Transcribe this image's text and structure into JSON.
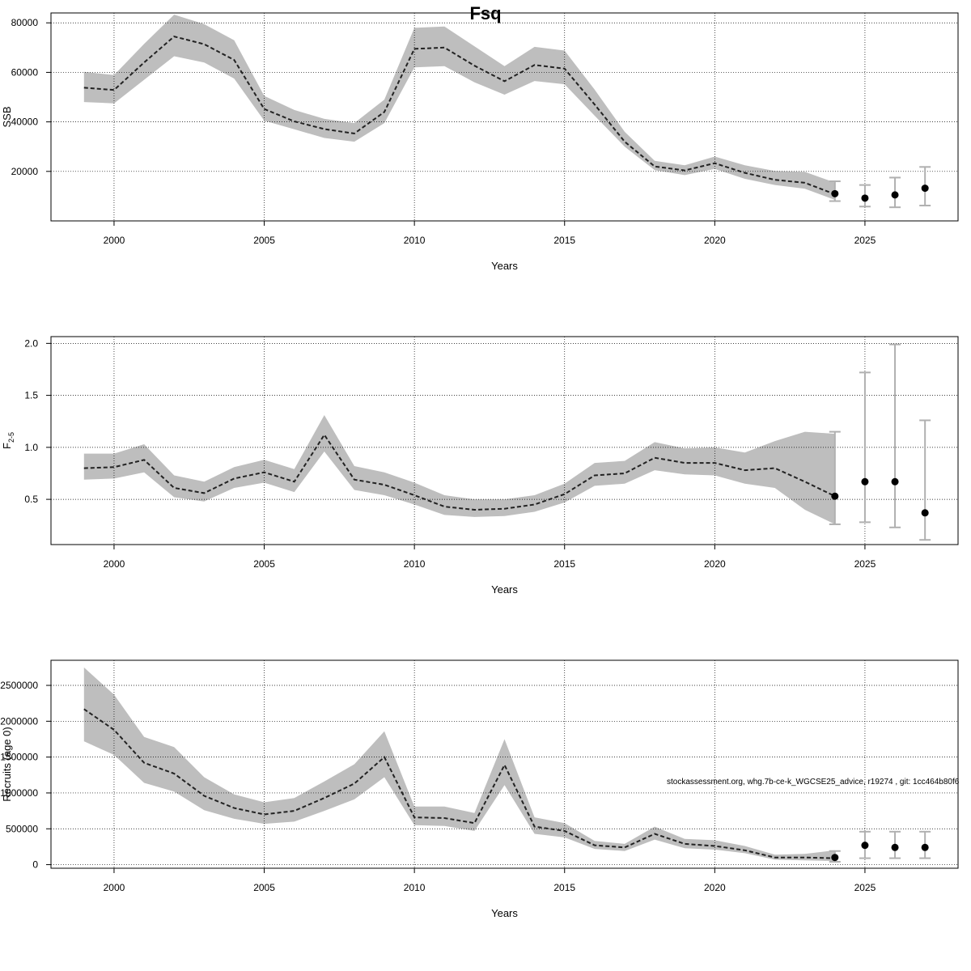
{
  "title": "Fsq",
  "footnote": "stockassessment.org, whg.7b-ce-k_WGCSE25_advice, r19274 , git: 1cc464b80f6",
  "colors": {
    "band": "#bebebe",
    "line": "#222222",
    "errorbar": "#b0b0b0",
    "grid": "#000000"
  },
  "chart_data": [
    {
      "type": "line",
      "title": "",
      "xlabel": "Years",
      "ylabel": "SSB",
      "xlim": [
        1997.9,
        2028.1
      ],
      "ylim": [
        0,
        84000
      ],
      "xticks": [
        2000,
        2005,
        2010,
        2015,
        2020,
        2025
      ],
      "yticks": [
        20000,
        40000,
        60000,
        80000
      ],
      "grid": true,
      "series": [
        {
          "x": [
            1999,
            2000,
            2001,
            2002,
            2003,
            2004,
            2005,
            2006,
            2007,
            2008,
            2009,
            2010,
            2011,
            2012,
            2013,
            2014,
            2015,
            2016,
            2017,
            2018,
            2019,
            2020,
            2021,
            2022,
            2023,
            2024
          ],
          "values": [
            53800,
            52900,
            64000,
            74500,
            71400,
            65000,
            45200,
            40200,
            37100,
            35300,
            44000,
            69500,
            70000,
            62700,
            56400,
            63000,
            61500,
            47000,
            32000,
            22000,
            20400,
            23300,
            19400,
            16600,
            15400,
            10800
          ],
          "lower": [
            48000,
            47500,
            57000,
            66500,
            64000,
            57500,
            40500,
            37000,
            33500,
            32000,
            39500,
            62000,
            62500,
            56000,
            51000,
            56500,
            55200,
            42500,
            30000,
            20500,
            18500,
            21000,
            17000,
            14500,
            13000,
            8500
          ],
          "upper": [
            60200,
            58900,
            71500,
            83300,
            79500,
            73000,
            50500,
            44800,
            41200,
            39500,
            49000,
            78000,
            78500,
            70500,
            62500,
            70300,
            68800,
            53000,
            36000,
            24300,
            22500,
            26000,
            22500,
            20200,
            19800,
            15500
          ]
        }
      ],
      "points": [
        {
          "x": 2024,
          "y": 11000,
          "lower": 8000,
          "upper": 16000
        },
        {
          "x": 2025,
          "y": 9200,
          "lower": 5800,
          "upper": 14500
        },
        {
          "x": 2026,
          "y": 10500,
          "lower": 5500,
          "upper": 17500
        },
        {
          "x": 2027,
          "y": 13200,
          "lower": 6200,
          "upper": 21800
        }
      ]
    },
    {
      "type": "line",
      "title": "",
      "xlabel": "Years",
      "ylabel": "F",
      "ylabel_sub": "2-5",
      "xlim": [
        1997.9,
        2028.1
      ],
      "ylim": [
        0.065,
        2.065
      ],
      "xticks": [
        2000,
        2005,
        2010,
        2015,
        2020,
        2025
      ],
      "yticks": [
        0.5,
        1.0,
        1.5,
        2.0
      ],
      "yticklabels": [
        "0.5",
        "1.0",
        "1.5",
        "2.0"
      ],
      "grid": true,
      "series": [
        {
          "x": [
            1999,
            2000,
            2001,
            2002,
            2003,
            2004,
            2005,
            2006,
            2007,
            2008,
            2009,
            2010,
            2011,
            2012,
            2013,
            2014,
            2015,
            2016,
            2017,
            2018,
            2019,
            2020,
            2021,
            2022,
            2023,
            2024
          ],
          "values": [
            0.8,
            0.81,
            0.88,
            0.61,
            0.56,
            0.7,
            0.76,
            0.67,
            1.12,
            0.69,
            0.64,
            0.54,
            0.43,
            0.4,
            0.41,
            0.45,
            0.55,
            0.73,
            0.75,
            0.9,
            0.85,
            0.85,
            0.78,
            0.8,
            0.67,
            0.53
          ],
          "lower": [
            0.69,
            0.7,
            0.76,
            0.52,
            0.48,
            0.61,
            0.66,
            0.57,
            0.96,
            0.59,
            0.54,
            0.45,
            0.35,
            0.33,
            0.34,
            0.38,
            0.47,
            0.63,
            0.65,
            0.78,
            0.74,
            0.73,
            0.65,
            0.61,
            0.4,
            0.26
          ],
          "upper": [
            0.94,
            0.94,
            1.03,
            0.73,
            0.67,
            0.81,
            0.88,
            0.79,
            1.31,
            0.82,
            0.76,
            0.66,
            0.54,
            0.5,
            0.5,
            0.54,
            0.65,
            0.85,
            0.87,
            1.05,
            0.99,
            1.0,
            0.95,
            1.06,
            1.15,
            1.13
          ]
        }
      ],
      "points": [
        {
          "x": 2024,
          "y": 0.53,
          "lower": 0.26,
          "upper": 1.15
        },
        {
          "x": 2025,
          "y": 0.67,
          "lower": 0.28,
          "upper": 1.72
        },
        {
          "x": 2026,
          "y": 0.67,
          "lower": 0.23,
          "upper": 1.99
        },
        {
          "x": 2027,
          "y": 0.37,
          "lower": 0.11,
          "upper": 1.26
        }
      ]
    },
    {
      "type": "line",
      "title": "",
      "xlabel": "Years",
      "ylabel": "Recruits (age 0)",
      "xlim": [
        1997.9,
        2028.1
      ],
      "ylim": [
        -50000,
        2850000
      ],
      "xticks": [
        2000,
        2005,
        2010,
        2015,
        2020,
        2025
      ],
      "yticks": [
        0,
        500000,
        1000000,
        1500000,
        2000000,
        2500000
      ],
      "yticklabels": [
        "0",
        "500000",
        "1000000",
        "1500000",
        "2000000",
        "2500000"
      ],
      "grid": true,
      "series": [
        {
          "x": [
            1999,
            2000,
            2001,
            2002,
            2003,
            2004,
            2005,
            2006,
            2007,
            2008,
            2009,
            2010,
            2011,
            2012,
            2013,
            2014,
            2015,
            2016,
            2017,
            2018,
            2019,
            2020,
            2021,
            2022,
            2023,
            2024
          ],
          "values": [
            2170000,
            1880000,
            1420000,
            1270000,
            960000,
            790000,
            700000,
            750000,
            930000,
            1130000,
            1500000,
            660000,
            650000,
            580000,
            1390000,
            530000,
            470000,
            270000,
            240000,
            430000,
            290000,
            260000,
            200000,
            100000,
            100000,
            90000
          ],
          "lower": [
            1720000,
            1530000,
            1140000,
            1020000,
            760000,
            640000,
            570000,
            600000,
            750000,
            910000,
            1220000,
            550000,
            540000,
            470000,
            1110000,
            430000,
            380000,
            220000,
            190000,
            350000,
            230000,
            210000,
            160000,
            70000,
            60000,
            50000
          ],
          "upper": [
            2750000,
            2370000,
            1780000,
            1640000,
            1220000,
            980000,
            870000,
            930000,
            1160000,
            1400000,
            1860000,
            810000,
            810000,
            720000,
            1750000,
            660000,
            580000,
            330000,
            290000,
            530000,
            360000,
            340000,
            260000,
            140000,
            150000,
            200000
          ]
        }
      ],
      "points": [
        {
          "x": 2024,
          "y": 100000,
          "lower": 40000,
          "upper": 190000
        },
        {
          "x": 2025,
          "y": 270000,
          "lower": 90000,
          "upper": 460000
        },
        {
          "x": 2026,
          "y": 240000,
          "lower": 90000,
          "upper": 460000
        },
        {
          "x": 2027,
          "y": 240000,
          "lower": 90000,
          "upper": 460000
        }
      ]
    }
  ]
}
